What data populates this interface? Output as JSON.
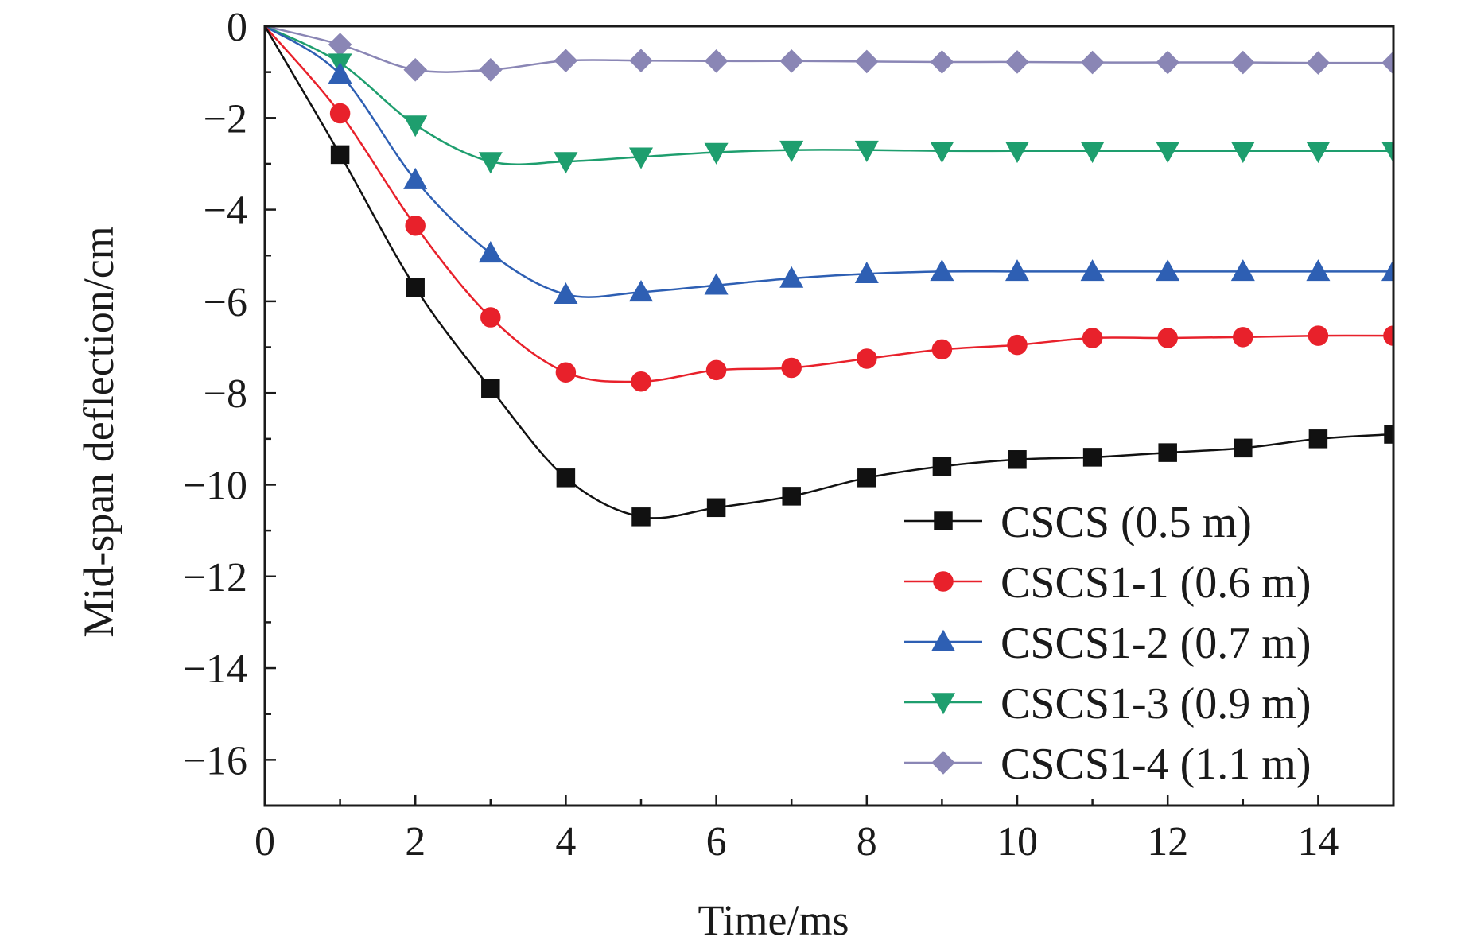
{
  "chart_data": {
    "type": "line",
    "title": "",
    "xlabel": "Time/ms",
    "ylabel": "Mid-span deflection/cm",
    "xlim": [
      0,
      15
    ],
    "ylim": [
      -17,
      0
    ],
    "x_ticks": [
      0,
      2,
      4,
      6,
      8,
      10,
      12,
      14
    ],
    "x_tick_labels": [
      "0",
      "2",
      "4",
      "6",
      "8",
      "10",
      "12",
      "14"
    ],
    "y_ticks": [
      0,
      -2,
      -4,
      -6,
      -8,
      -10,
      -12,
      -14,
      -16
    ],
    "y_tick_labels": [
      "0",
      "−2",
      "−4",
      "−6",
      "−8",
      "−10",
      "−12",
      "−14",
      "−16"
    ],
    "grid": false,
    "legend_position": "bottom-right",
    "series": [
      {
        "name": "CSCS (0.5 m)",
        "color": "#111111",
        "marker": "square",
        "x": [
          0,
          1,
          2,
          3,
          4,
          5,
          6,
          7,
          8,
          9,
          10,
          11,
          12,
          13,
          14,
          15
        ],
        "y": [
          0,
          -2.8,
          -5.7,
          -7.9,
          -9.85,
          -10.7,
          -10.5,
          -10.25,
          -9.85,
          -9.6,
          -9.45,
          -9.4,
          -9.3,
          -9.2,
          -9.0,
          -8.9
        ]
      },
      {
        "name": "CSCS1-1 (0.6 m)",
        "color": "#e8212b",
        "marker": "circle",
        "x": [
          0,
          1,
          2,
          3,
          4,
          5,
          6,
          7,
          8,
          9,
          10,
          11,
          12,
          13,
          14,
          15
        ],
        "y": [
          0,
          -1.9,
          -4.35,
          -6.35,
          -7.55,
          -7.75,
          -7.5,
          -7.45,
          -7.25,
          -7.05,
          -6.95,
          -6.8,
          -6.8,
          -6.78,
          -6.75,
          -6.75
        ]
      },
      {
        "name": "CSCS1-2 (0.7 m)",
        "color": "#2e5fb3",
        "marker": "triangle-up",
        "x": [
          0,
          1,
          2,
          3,
          4,
          5,
          6,
          7,
          8,
          9,
          10,
          11,
          12,
          13,
          14,
          15
        ],
        "y": [
          0,
          -1.05,
          -3.35,
          -4.95,
          -5.85,
          -5.8,
          -5.65,
          -5.5,
          -5.4,
          -5.35,
          -5.35,
          -5.35,
          -5.35,
          -5.35,
          -5.35,
          -5.35
        ]
      },
      {
        "name": "CSCS1-3 (0.9 m)",
        "color": "#1e9e6e",
        "marker": "triangle-down",
        "x": [
          0,
          1,
          2,
          3,
          4,
          5,
          6,
          7,
          8,
          9,
          10,
          11,
          12,
          13,
          14,
          15
        ],
        "y": [
          0,
          -0.8,
          -2.15,
          -2.95,
          -2.95,
          -2.85,
          -2.75,
          -2.7,
          -2.7,
          -2.72,
          -2.72,
          -2.72,
          -2.72,
          -2.72,
          -2.72,
          -2.72
        ]
      },
      {
        "name": "CSCS1-4 (1.1 m)",
        "color": "#8a86b5",
        "marker": "diamond",
        "x": [
          0,
          1,
          2,
          3,
          4,
          5,
          6,
          7,
          8,
          9,
          10,
          11,
          12,
          13,
          14,
          15
        ],
        "y": [
          0,
          -0.4,
          -0.95,
          -0.95,
          -0.75,
          -0.75,
          -0.76,
          -0.76,
          -0.77,
          -0.78,
          -0.78,
          -0.79,
          -0.79,
          -0.79,
          -0.8,
          -0.8
        ]
      }
    ]
  }
}
